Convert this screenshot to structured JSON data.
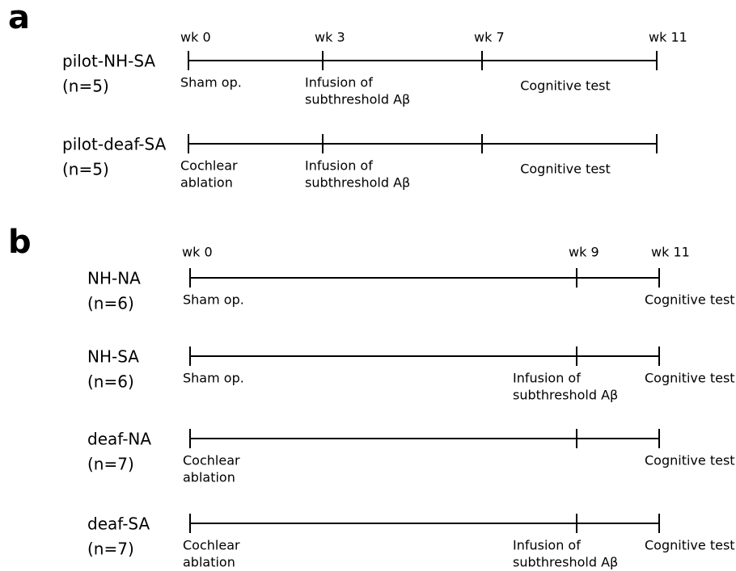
{
  "panels": [
    {
      "label": "a",
      "weeks": [
        "wk 0",
        "wk 3",
        "wk 7",
        "wk 11"
      ],
      "groups": [
        {
          "name": "pilot-NH-SA",
          "n": "(n=5)",
          "events": [
            [
              "Sham op."
            ],
            [
              "Infusion of",
              "subthreshold Aβ"
            ],
            [
              "Cognitive test"
            ]
          ]
        },
        {
          "name": "pilot-deaf-SA",
          "n": "(n=5)",
          "events": [
            [
              "Cochlear",
              "ablation"
            ],
            [
              "Infusion of",
              "subthreshold Aβ"
            ],
            [
              "Cognitive test"
            ]
          ]
        }
      ]
    },
    {
      "label": "b",
      "weeks": [
        "wk 0",
        "wk 9",
        "wk 11"
      ],
      "groups": [
        {
          "name": "NH-NA",
          "n": "(n=6)",
          "events": [
            [
              "Sham op."
            ],
            [
              "Cognitive test"
            ]
          ]
        },
        {
          "name": "NH-SA",
          "n": "(n=6)",
          "events": [
            [
              "Sham op."
            ],
            [
              "Infusion of",
              "subthreshold Aβ"
            ],
            [
              "Cognitive test"
            ]
          ]
        },
        {
          "name": "deaf-NA",
          "n": "(n=7)",
          "events": [
            [
              "Cochlear",
              "ablation"
            ],
            [
              "Cognitive test"
            ]
          ]
        },
        {
          "name": "deaf-SA",
          "n": "(n=7)",
          "events": [
            [
              "Cochlear",
              "ablation"
            ],
            [
              "Infusion of",
              "subthreshold Aβ"
            ],
            [
              "Cognitive test"
            ]
          ]
        }
      ]
    }
  ]
}
